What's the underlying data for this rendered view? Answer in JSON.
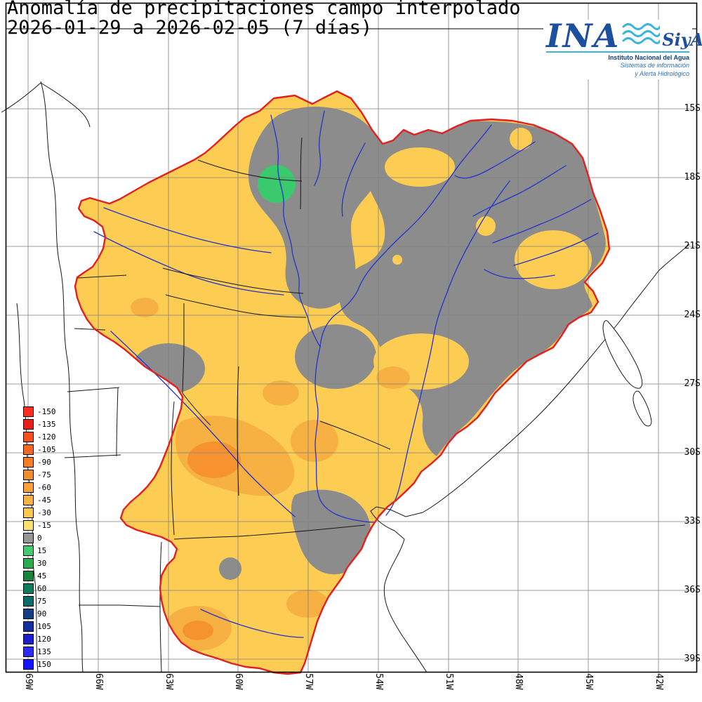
{
  "title": {
    "line1": "Anomalía de precipitaciones campo interpolado",
    "line2": "2026-01-29 a 2026-02-05 (7 días)"
  },
  "logo": {
    "ina": "INA",
    "siyah": "SiyAH",
    "subtitle1": "Instituto Nacional del Agua",
    "subtitle2": "Sistemas de información",
    "subtitle3": "y Alerta Hidrológico"
  },
  "map": {
    "lat_labels": [
      "15S",
      "18S",
      "21S",
      "24S",
      "27S",
      "30S",
      "33S",
      "36S",
      "39S"
    ],
    "lon_labels": [
      "69W",
      "66W",
      "63W",
      "60W",
      "57W",
      "54W",
      "51W",
      "48W",
      "45W",
      "42W"
    ]
  },
  "legend": {
    "entries": [
      {
        "value": "-150",
        "color": "#fb2e21"
      },
      {
        "value": "-135",
        "color": "#e81f1c"
      },
      {
        "value": "-120",
        "color": "#f4511f"
      },
      {
        "value": "-105",
        "color": "#f26a24"
      },
      {
        "value": "-90",
        "color": "#f67d26"
      },
      {
        "value": "-75",
        "color": "#ef8e2e"
      },
      {
        "value": "-60",
        "color": "#f9a23a"
      },
      {
        "value": "-45",
        "color": "#f6b343"
      },
      {
        "value": "-30",
        "color": "#fcc94e"
      },
      {
        "value": "-15",
        "color": "#fbe26e"
      },
      {
        "value": "0",
        "color": "#969696"
      },
      {
        "value": "15",
        "color": "#44ca6e"
      },
      {
        "value": "30",
        "color": "#2aad50"
      },
      {
        "value": "45",
        "color": "#17853a"
      },
      {
        "value": "60",
        "color": "#0f7d5c"
      },
      {
        "value": "75",
        "color": "#0b6b68"
      },
      {
        "value": "90",
        "color": "#123f86"
      },
      {
        "value": "105",
        "color": "#15309d"
      },
      {
        "value": "120",
        "color": "#1d1fcb"
      },
      {
        "value": "135",
        "color": "#2b2bf2"
      },
      {
        "value": "150",
        "color": "#1313ff"
      }
    ]
  },
  "colors": {
    "field_yellow": "#fccd52",
    "field_gray": "#8c8c8c",
    "field_orange": "#f7b143",
    "field_orange_deep": "#f6932f",
    "field_green": "#3bc96d",
    "basin_outline": "#e32020",
    "river_blue": "#2433cc",
    "border_black": "#161616",
    "grid_gray": "#7f7f7f",
    "logo_blue": "#1c4f9e",
    "logo_cyan": "#3ab5dc",
    "logo_text_blue": "#2a6fc0"
  }
}
